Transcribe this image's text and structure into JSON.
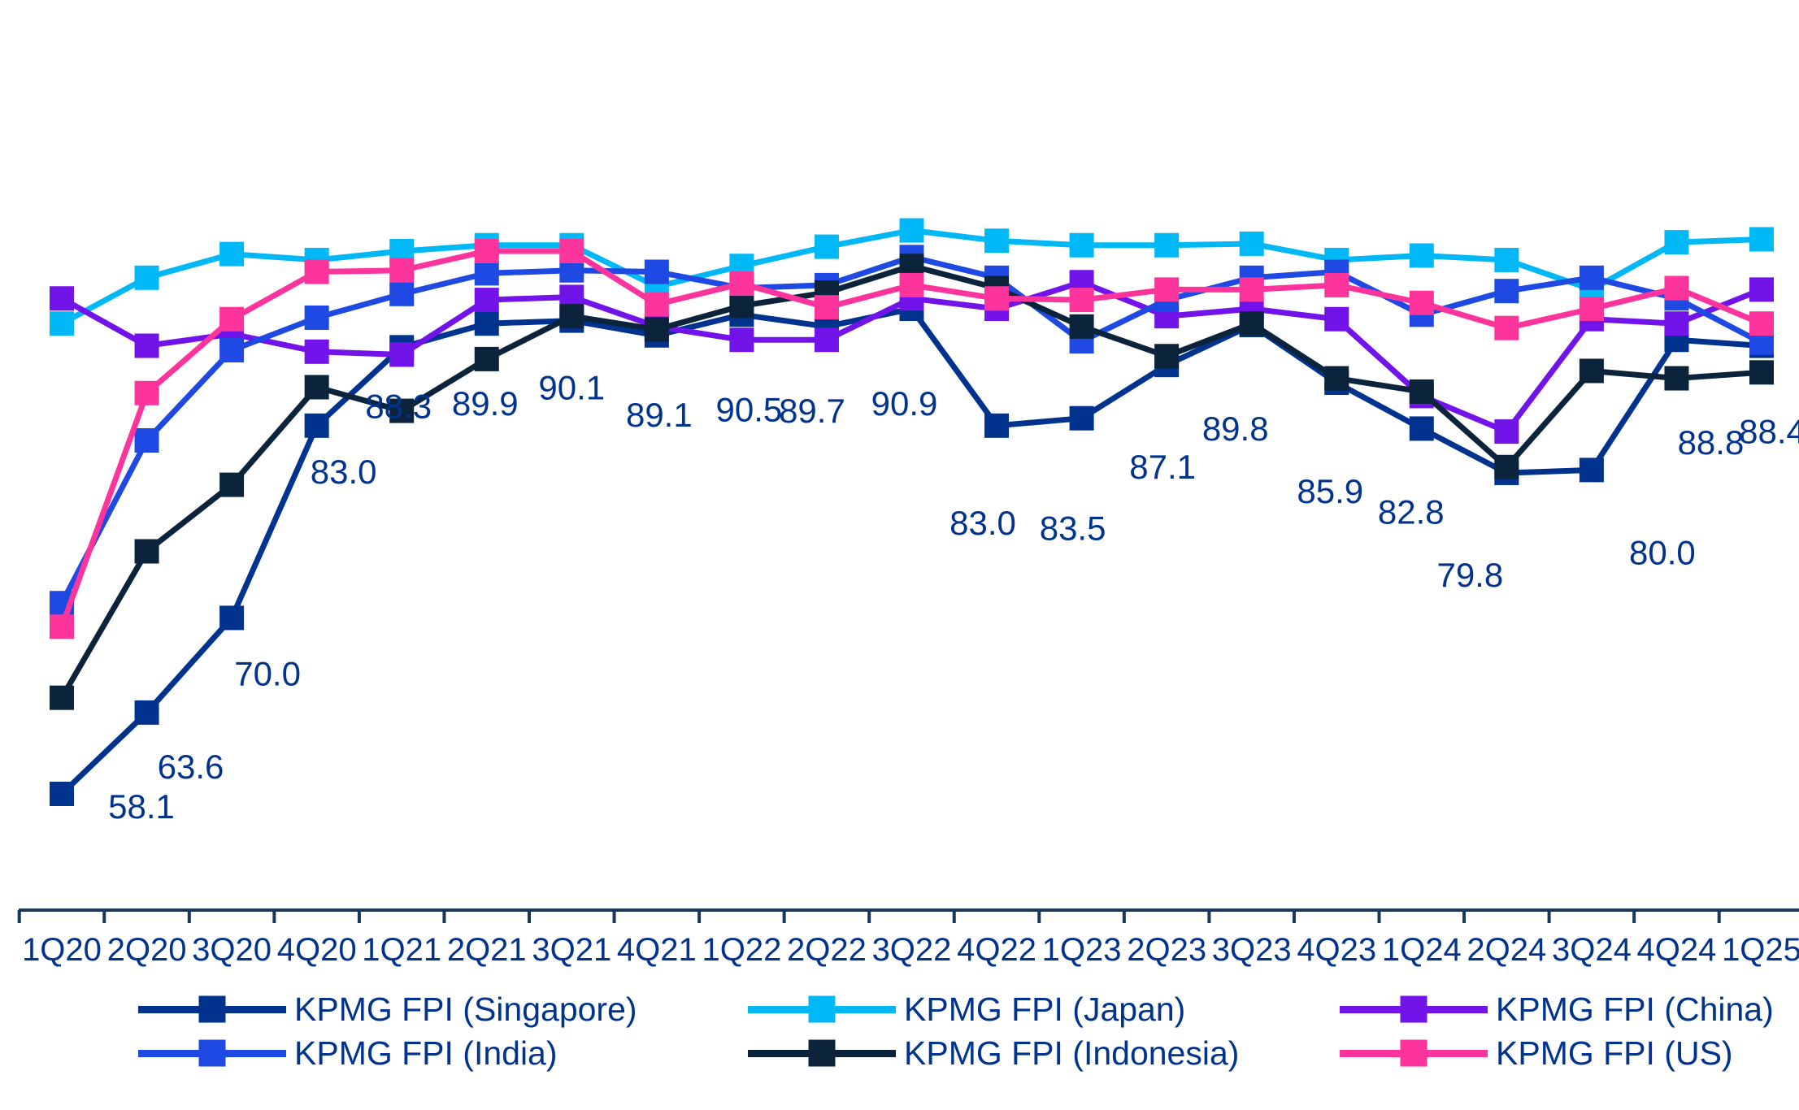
{
  "chart_data": {
    "type": "line",
    "title": "",
    "xlabel": "",
    "ylabel": "",
    "ylim": [
      50,
      100
    ],
    "grid": false,
    "legend_position": "bottom",
    "marker": "square",
    "categories": [
      "1Q20",
      "2Q20",
      "3Q20",
      "4Q20",
      "1Q21",
      "2Q21",
      "3Q21",
      "4Q21",
      "1Q22",
      "2Q22",
      "3Q22",
      "4Q22",
      "1Q23",
      "2Q23",
      "3Q23",
      "4Q23",
      "1Q24",
      "2Q24",
      "3Q24",
      "4Q24",
      "1Q25"
    ],
    "series": [
      {
        "name": "KPMG FPI (Singapore)",
        "color": "#00338D",
        "values": [
          58.1,
          63.6,
          70.0,
          83.0,
          88.3,
          89.9,
          90.1,
          89.1,
          90.5,
          89.7,
          90.9,
          83.0,
          83.5,
          87.1,
          89.8,
          85.9,
          82.8,
          79.8,
          80.0,
          88.8,
          88.4
        ],
        "show_labels": true
      },
      {
        "name": "KPMG FPI (Japan)",
        "color": "#00B8F5",
        "values": [
          89.9,
          93.0,
          94.6,
          94.2,
          94.8,
          95.2,
          95.2,
          92.4,
          93.8,
          95.1,
          96.2,
          95.5,
          95.2,
          95.2,
          95.3,
          94.2,
          94.5,
          94.2,
          92.2,
          95.4,
          95.6
        ],
        "show_labels": false
      },
      {
        "name": "KPMG FPI (China)",
        "color": "#7213EA",
        "values": [
          91.6,
          88.4,
          89.2,
          88.0,
          87.8,
          91.5,
          91.7,
          89.7,
          88.8,
          88.8,
          91.6,
          90.9,
          92.7,
          90.4,
          90.9,
          90.2,
          85.0,
          82.6,
          90.2,
          89.9,
          92.2
        ],
        "show_labels": false
      },
      {
        "name": "KPMG FPI (India)",
        "color": "#1E49E2",
        "values": [
          71.0,
          82.0,
          88.1,
          90.3,
          91.9,
          93.3,
          93.5,
          93.4,
          92.3,
          92.5,
          94.4,
          93.0,
          88.7,
          91.5,
          93.0,
          93.4,
          90.5,
          92.1,
          93.0,
          91.6,
          88.6
        ],
        "show_labels": false
      },
      {
        "name": "KPMG FPI (Indonesia)",
        "color": "#0C233C",
        "values": [
          64.6,
          74.5,
          79.0,
          85.6,
          84.0,
          87.5,
          90.4,
          89.5,
          91.1,
          92.0,
          93.8,
          92.3,
          89.7,
          87.7,
          89.9,
          86.2,
          85.3,
          80.2,
          86.7,
          86.2,
          86.6
        ],
        "show_labels": false
      },
      {
        "name": "KPMG FPI (US)",
        "color": "#FD349C",
        "values": [
          69.4,
          85.2,
          90.2,
          93.4,
          93.5,
          94.8,
          94.8,
          91.2,
          92.6,
          91.0,
          92.5,
          91.6,
          91.5,
          92.2,
          92.2,
          92.5,
          91.3,
          89.6,
          90.9,
          92.3,
          89.9
        ],
        "show_labels": false
      }
    ],
    "data_labels": {
      "series": "KPMG FPI (Singapore)",
      "values": [
        "58.1",
        "63.6",
        "70.0",
        "83.0",
        "88.3",
        "89.9",
        "90.1",
        "89.1",
        "90.5",
        "89.7",
        "90.9",
        "83.0",
        "83.5",
        "87.1",
        "89.8",
        "85.9",
        "82.8",
        "79.8",
        "80.0",
        "88.8",
        "88.4"
      ],
      "color": "#00338D"
    }
  },
  "axis": {
    "line_color": "#17375D",
    "label_color": "#00338D",
    "labels": [
      "1Q20",
      "2Q20",
      "3Q20",
      "4Q20",
      "1Q21",
      "2Q21",
      "3Q21",
      "4Q21",
      "1Q22",
      "2Q22",
      "3Q22",
      "4Q22",
      "1Q23",
      "2Q23",
      "3Q23",
      "4Q23",
      "1Q24",
      "2Q24",
      "3Q24",
      "4Q24",
      "1Q25"
    ]
  },
  "legend": {
    "text_color": "#00338D",
    "items": [
      {
        "label": "KPMG FPI (Singapore)",
        "color": "#00338D"
      },
      {
        "label": "KPMG FPI (Japan)",
        "color": "#00B8F5"
      },
      {
        "label": "KPMG FPI (China)",
        "color": "#7213EA"
      },
      {
        "label": "KPMG FPI (India)",
        "color": "#1E49E2"
      },
      {
        "label": "KPMG FPI (Indonesia)",
        "color": "#0C233C"
      },
      {
        "label": "KPMG FPI (US)",
        "color": "#FD349C"
      }
    ]
  }
}
